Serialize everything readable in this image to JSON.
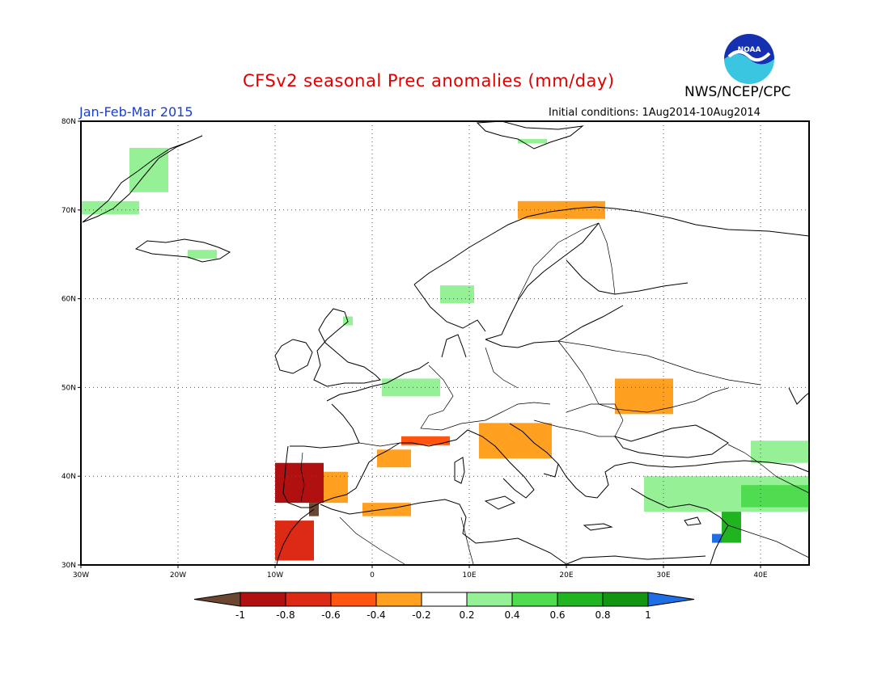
{
  "header": {
    "title": "CFSv2 seasonal Prec anomalies (mm/day)",
    "org": "NWS/NCEP/CPC",
    "period": "Jan-Feb-Mar 2015",
    "initial_conditions": "Initial conditions: 1Aug2014-10Aug2014",
    "logo_text": "NOAA"
  },
  "map": {
    "lon_range": [
      -30,
      45
    ],
    "lat_range": [
      30,
      80
    ],
    "grid": "dotted",
    "lon_ticks": [
      "30W",
      "20W",
      "10W",
      "0",
      "10E",
      "20E",
      "30E",
      "40E"
    ],
    "lat_ticks": [
      "30N",
      "40N",
      "50N",
      "60N",
      "70N",
      "80N"
    ]
  },
  "legend": {
    "labels": [
      "-1",
      "-0.8",
      "-0.6",
      "-0.4",
      "-0.2",
      "0.2",
      "0.4",
      "0.6",
      "0.8",
      "1"
    ],
    "colors": {
      "lt_-1": "#6b4630",
      "-1_-0.8": "#b01010",
      "-0.8_-0.6": "#dd2a15",
      "-0.6_-0.4": "#ff5511",
      "-0.4_-0.2": "#ffa020",
      "-0.2_0.2": "#ffffff",
      "0.2_0.4": "#96f096",
      "0.4_0.6": "#50dc50",
      "0.6_0.8": "#20b420",
      "0.8_1": "#129612",
      "gt_1": "#1e6ee6"
    }
  },
  "anomaly_regions": [
    {
      "name": "greenland-east",
      "category": "0.2_0.4",
      "lon": [
        -25,
        -21
      ],
      "lat": [
        72,
        77
      ]
    },
    {
      "name": "greenland-se",
      "category": "0.2_0.4",
      "lon": [
        -30,
        -24
      ],
      "lat": [
        69.5,
        71
      ]
    },
    {
      "name": "iceland",
      "category": "0.2_0.4",
      "lon": [
        -19,
        -16
      ],
      "lat": [
        64.5,
        65.5
      ]
    },
    {
      "name": "norway-west",
      "category": "0.2_0.4",
      "lon": [
        7,
        10.5
      ],
      "lat": [
        59.5,
        61.5
      ]
    },
    {
      "name": "uk-north",
      "category": "0.2_0.4",
      "lon": [
        -3,
        -2
      ],
      "lat": [
        57,
        58
      ]
    },
    {
      "name": "benelux-germany",
      "category": "0.2_0.4",
      "lon": [
        1,
        7
      ],
      "lat": [
        49,
        51
      ]
    },
    {
      "name": "barents-coast",
      "category": "0.2_0.4",
      "lon": [
        15,
        18
      ],
      "lat": [
        77.5,
        78
      ]
    },
    {
      "name": "turkey",
      "category": "0.2_0.4",
      "lon": [
        28,
        45
      ],
      "lat": [
        36,
        40
      ]
    },
    {
      "name": "caucasus",
      "category": "0.2_0.4",
      "lon": [
        39,
        45
      ],
      "lat": [
        41.5,
        44
      ]
    },
    {
      "name": "turkey-east",
      "category": "0.4_0.6",
      "lon": [
        38,
        45
      ],
      "lat": [
        36.5,
        39
      ]
    },
    {
      "name": "near-east",
      "category": "0.6_0.8",
      "lon": [
        36,
        38
      ],
      "lat": [
        32.5,
        36
      ]
    },
    {
      "name": "levant",
      "category": "gt_1",
      "lon": [
        35,
        36
      ],
      "lat": [
        32.5,
        33.5
      ]
    },
    {
      "name": "norway-north",
      "category": "-0.4_-0.2",
      "lon": [
        15,
        24
      ],
      "lat": [
        69,
        71
      ]
    },
    {
      "name": "ukraine",
      "category": "-0.4_-0.2",
      "lon": [
        25,
        31
      ],
      "lat": [
        47,
        51
      ]
    },
    {
      "name": "adriatic",
      "category": "-0.4_-0.2",
      "lon": [
        11,
        18.5
      ],
      "lat": [
        42,
        46
      ]
    },
    {
      "name": "spain-east",
      "category": "-0.4_-0.2",
      "lon": [
        -6,
        -2.5
      ],
      "lat": [
        37,
        40.5
      ]
    },
    {
      "name": "catalonia",
      "category": "-0.4_-0.2",
      "lon": [
        0.5,
        4
      ],
      "lat": [
        41,
        43
      ]
    },
    {
      "name": "algeria",
      "category": "-0.4_-0.2",
      "lon": [
        -1,
        4
      ],
      "lat": [
        35.5,
        37
      ]
    },
    {
      "name": "gulf-of-lion",
      "category": "-0.6_-0.4",
      "lon": [
        3,
        8
      ],
      "lat": [
        43.5,
        44.5
      ]
    },
    {
      "name": "portugal",
      "category": "-1_-0.8",
      "lon": [
        -10,
        -5
      ],
      "lat": [
        37,
        41.5
      ]
    },
    {
      "name": "morocco",
      "category": "-0.8_-0.6",
      "lon": [
        -10,
        -6
      ],
      "lat": [
        30.5,
        35
      ]
    },
    {
      "name": "gibraltar",
      "category": "lt_-1",
      "lon": [
        -6.5,
        -5.5
      ],
      "lat": [
        35.5,
        37
      ]
    }
  ]
}
